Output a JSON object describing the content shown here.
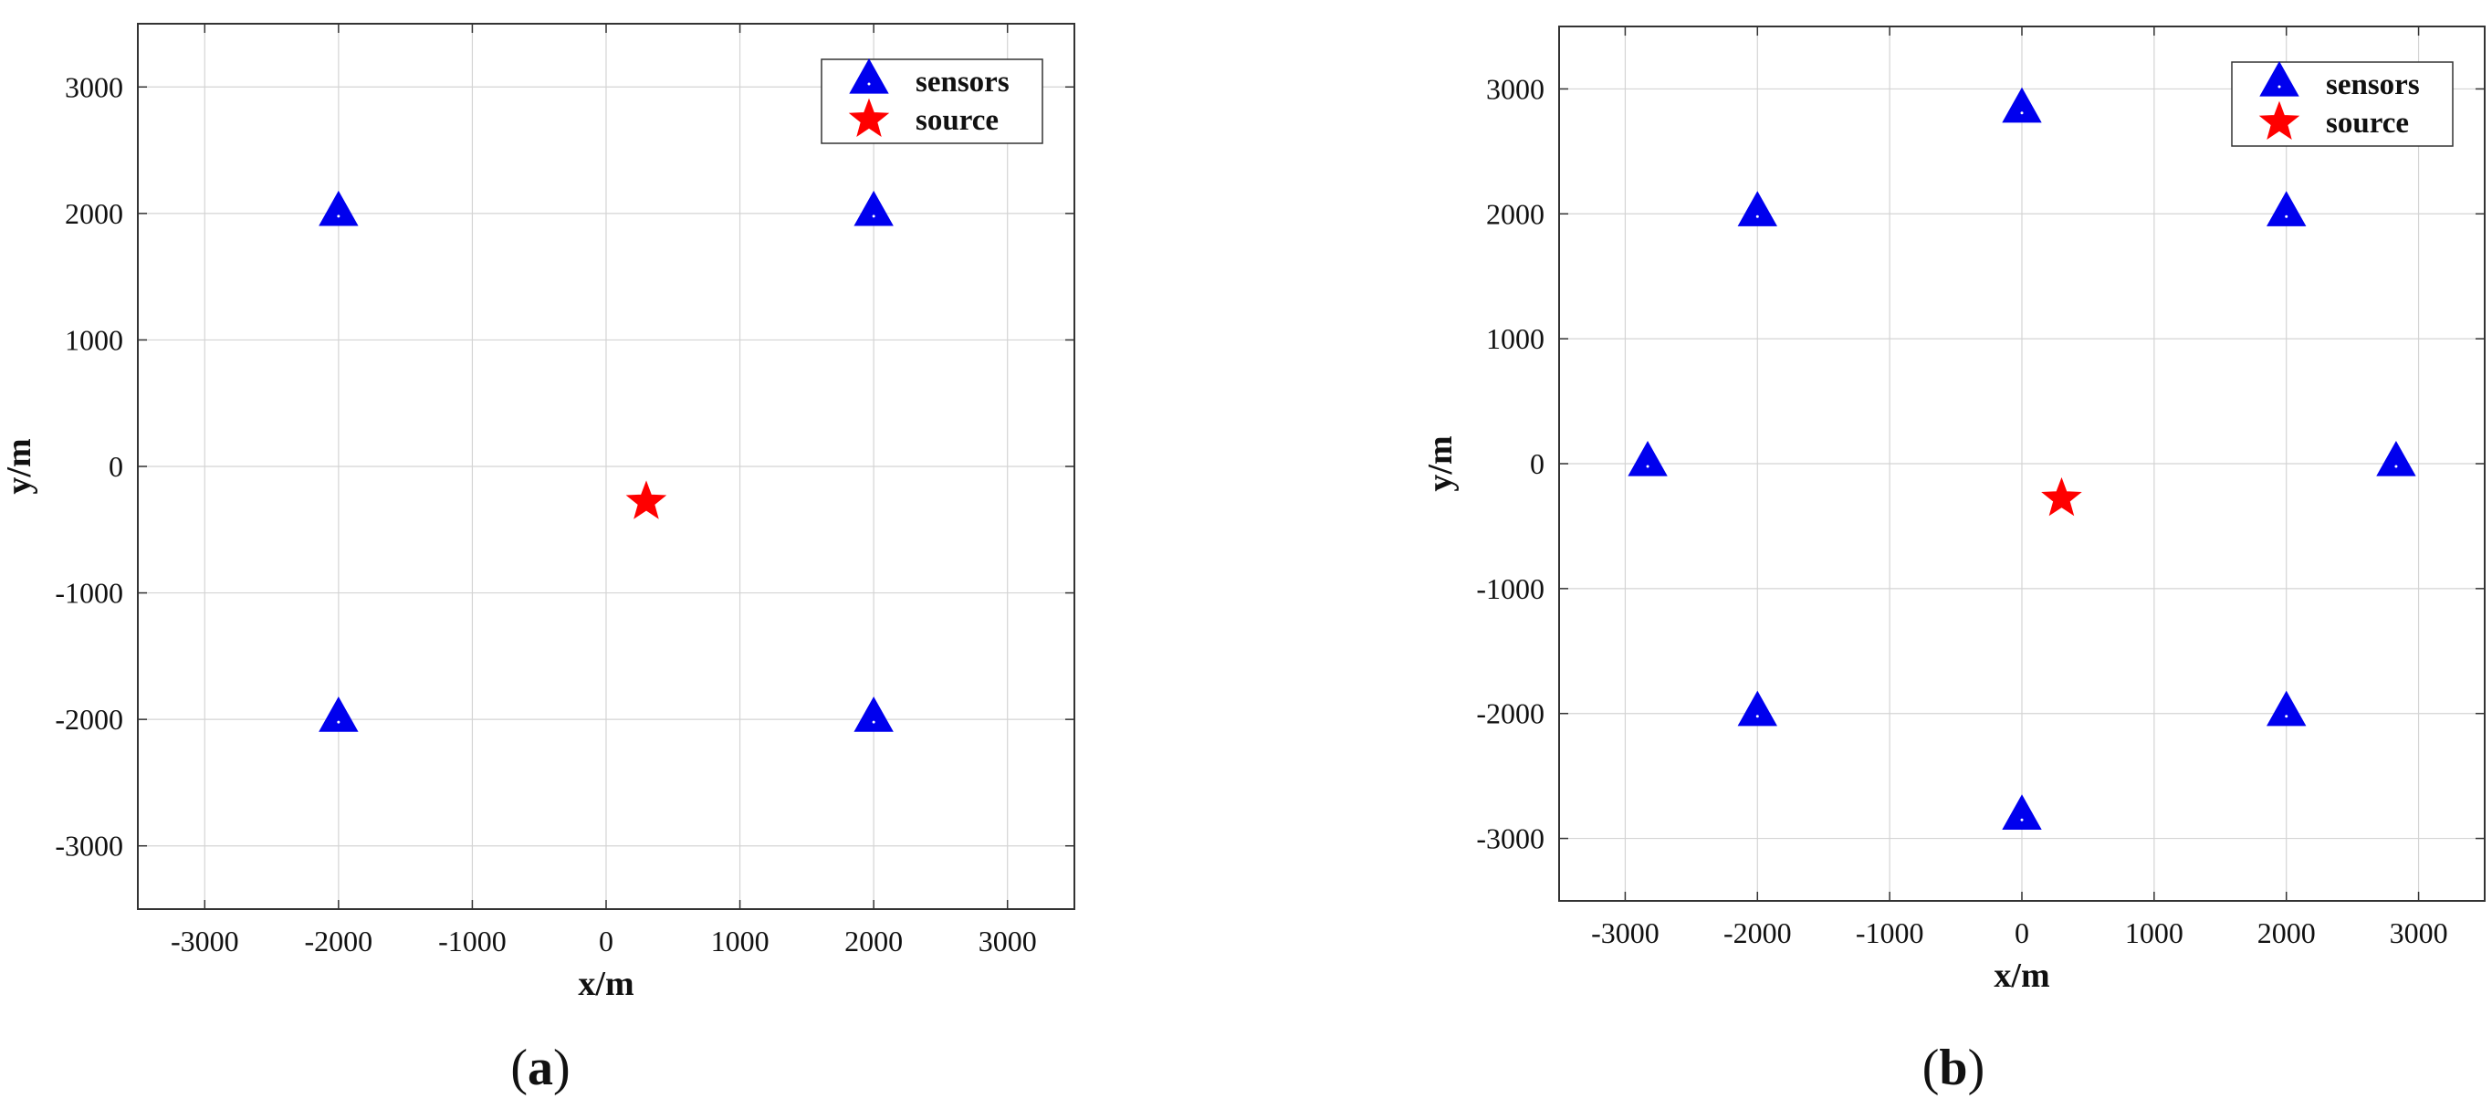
{
  "chart_data": [
    {
      "type": "scatter",
      "panel_label": "a",
      "xlabel": "x/m",
      "ylabel": "y/m",
      "xlim": [
        -3500,
        3500
      ],
      "ylim": [
        -3500,
        3500
      ],
      "xticks": [
        -3000,
        -2000,
        -1000,
        0,
        1000,
        2000,
        3000
      ],
      "yticks": [
        -3000,
        -2000,
        -1000,
        0,
        1000,
        2000,
        3000
      ],
      "xtick_labels": [
        "-3000",
        "-2000",
        "-1000",
        "0",
        "1000",
        "2000",
        "3000"
      ],
      "ytick_labels": [
        "-3000",
        "-2000",
        "-1000",
        "0",
        "1000",
        "2000",
        "3000"
      ],
      "grid": true,
      "legend_position": "top-right",
      "series": [
        {
          "name": "sensors",
          "marker": "triangle",
          "color": "#0000ee",
          "points": [
            [
              -2000,
              2000
            ],
            [
              2000,
              2000
            ],
            [
              -2000,
              -2000
            ],
            [
              2000,
              -2000
            ]
          ]
        },
        {
          "name": "source",
          "marker": "star",
          "color": "#ff0000",
          "points": [
            [
              300,
              -280
            ]
          ]
        }
      ]
    },
    {
      "type": "scatter",
      "panel_label": "b",
      "xlabel": "x/m",
      "ylabel": "y/m",
      "xlim": [
        -3500,
        3500
      ],
      "ylim": [
        -3500,
        3500
      ],
      "xticks": [
        -3000,
        -2000,
        -1000,
        0,
        1000,
        2000,
        3000
      ],
      "yticks": [
        -3000,
        -2000,
        -1000,
        0,
        1000,
        2000,
        3000
      ],
      "xtick_labels": [
        "-3000",
        "-2000",
        "-1000",
        "0",
        "1000",
        "2000",
        "3000"
      ],
      "ytick_labels": [
        "-3000",
        "-2000",
        "-1000",
        "0",
        "1000",
        "2000",
        "3000"
      ],
      "grid": true,
      "legend_position": "top-right",
      "series": [
        {
          "name": "sensors",
          "marker": "triangle",
          "color": "#0000ee",
          "points": [
            [
              0,
              2830
            ],
            [
              -2000,
              2000
            ],
            [
              2000,
              2000
            ],
            [
              -2830,
              0
            ],
            [
              2830,
              0
            ],
            [
              -2000,
              -2000
            ],
            [
              2000,
              -2000
            ],
            [
              0,
              -2830
            ]
          ]
        },
        {
          "name": "source",
          "marker": "star",
          "color": "#ff0000",
          "points": [
            [
              300,
              -280
            ]
          ]
        }
      ]
    }
  ]
}
